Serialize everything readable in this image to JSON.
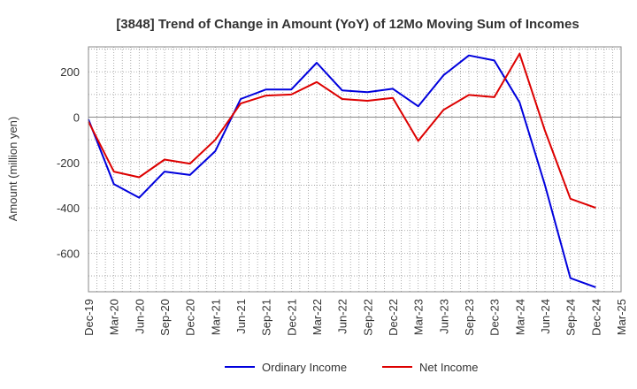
{
  "chart_data": {
    "type": "line",
    "title": "[3848]  Trend of Change in Amount (YoY) of 12Mo Moving Sum of Incomes",
    "ylabel": "Amount (million yen)",
    "xlabel": "",
    "ylim": [
      -770,
      310
    ],
    "yticks": [
      200,
      0,
      -200,
      -400,
      -600
    ],
    "categories": [
      "Dec-19",
      "Mar-20",
      "Jun-20",
      "Sep-20",
      "Dec-20",
      "Mar-21",
      "Jun-21",
      "Sep-21",
      "Dec-21",
      "Mar-22",
      "Jun-22",
      "Sep-22",
      "Dec-22",
      "Mar-23",
      "Jun-23",
      "Sep-23",
      "Dec-23",
      "Mar-24",
      "Jun-24",
      "Sep-24",
      "Dec-24",
      "Mar-25"
    ],
    "grid": true,
    "legend_position": "bottom",
    "series": [
      {
        "name": "Ordinary Income",
        "color": "#0000dd",
        "values": [
          -10,
          -295,
          -355,
          -240,
          -255,
          -150,
          80,
          122,
          122,
          240,
          118,
          110,
          125,
          48,
          185,
          272,
          250,
          65,
          -300,
          -710,
          -750,
          null
        ]
      },
      {
        "name": "Net Income",
        "color": "#dd0000",
        "values": [
          -20,
          -240,
          -265,
          -187,
          -205,
          -100,
          60,
          95,
          100,
          155,
          80,
          72,
          85,
          -105,
          32,
          98,
          88,
          280,
          -60,
          -360,
          -400,
          null
        ]
      }
    ]
  }
}
